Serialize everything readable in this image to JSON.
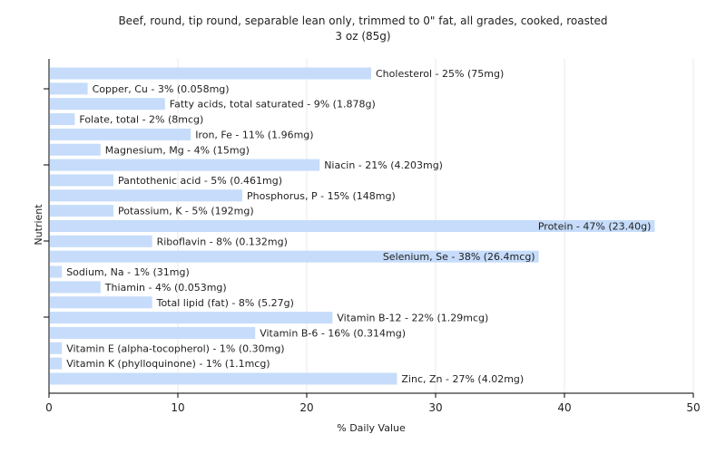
{
  "chart_data": {
    "type": "bar",
    "orientation": "horizontal",
    "title": "Beef, round, tip round, separable lean only, trimmed to 0\" fat, all grades, cooked, roasted",
    "subtitle": "3 oz (85g)",
    "xlabel": "% Daily Value",
    "ylabel": "Nutrient",
    "xlim": [
      0,
      50
    ],
    "xticks": [
      0,
      10,
      20,
      30,
      40,
      50
    ],
    "grid": true,
    "bar_color": "#c6dcfa",
    "categories": [
      "Cholesterol",
      "Copper, Cu",
      "Fatty acids, total saturated",
      "Folate, total",
      "Iron, Fe",
      "Magnesium, Mg",
      "Niacin",
      "Pantothenic acid",
      "Phosphorus, P",
      "Potassium, K",
      "Protein",
      "Riboflavin",
      "Selenium, Se",
      "Sodium, Na",
      "Thiamin",
      "Total lipid (fat)",
      "Vitamin B-12",
      "Vitamin B-6",
      "Vitamin E (alpha-tocopherol)",
      "Vitamin K (phylloquinone)",
      "Zinc, Zn"
    ],
    "values": [
      25,
      3,
      9,
      2,
      11,
      4,
      21,
      5,
      15,
      5,
      47,
      8,
      38,
      1,
      4,
      8,
      22,
      16,
      1,
      1,
      27
    ],
    "labels": [
      "Cholesterol - 25% (75mg)",
      "Copper, Cu - 3% (0.058mg)",
      "Fatty acids, total saturated - 9% (1.878g)",
      "Folate, total - 2% (8mcg)",
      "Iron, Fe - 11% (1.96mg)",
      "Magnesium, Mg - 4% (15mg)",
      "Niacin - 21% (4.203mg)",
      "Pantothenic acid - 5% (0.461mg)",
      "Phosphorus, P - 15% (148mg)",
      "Potassium, K - 5% (192mg)",
      "Protein - 47% (23.40g)",
      "Riboflavin - 8% (0.132mg)",
      "Selenium, Se - 38% (26.4mcg)",
      "Sodium, Na - 1% (31mg)",
      "Thiamin - 4% (0.053mg)",
      "Total lipid (fat) - 8% (5.27g)",
      "Vitamin B-12 - 22% (1.29mcg)",
      "Vitamin B-6 - 16% (0.314mg)",
      "Vitamin E (alpha-tocopherol) - 1% (0.30mg)",
      "Vitamin K (phylloquinone) - 1% (1.1mcg)",
      "Zinc, Zn - 27% (4.02mg)"
    ]
  }
}
